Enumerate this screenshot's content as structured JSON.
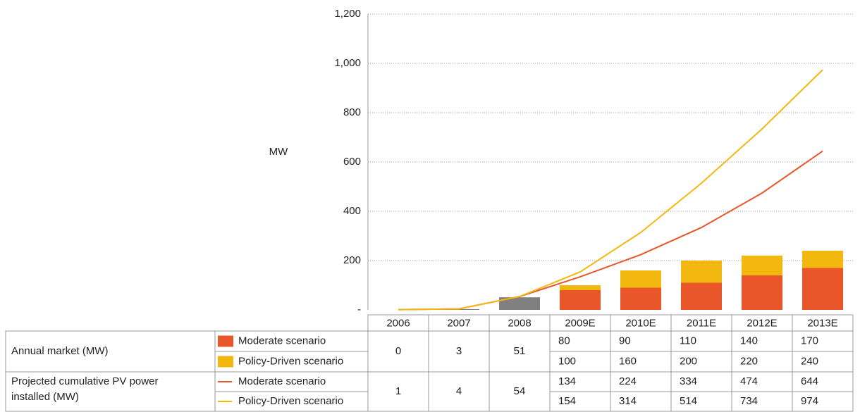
{
  "chart_data": {
    "type": "bar-line",
    "ylabel": "MW",
    "ylim": [
      0,
      1200
    ],
    "yticks": [
      {
        "value": 0,
        "label": "-"
      },
      200,
      400,
      600,
      800,
      {
        "value": 1000,
        "label": "1,000"
      },
      {
        "value": 1200,
        "label": "1,200"
      }
    ],
    "grid": true,
    "categories": [
      "2006",
      "2007",
      "2008",
      "2009E",
      "2010E",
      "2011E",
      "2012E",
      "2013E"
    ],
    "actual": {
      "color": "#808080",
      "annual": [
        0,
        3,
        51
      ],
      "cumulative": [
        1,
        4,
        54
      ]
    },
    "rows": [
      {
        "label": "Annual market (MW)",
        "kind": "bar",
        "series": [
          {
            "name": "Moderate scenario",
            "color": "#e8562a",
            "values": [
              80,
              90,
              110,
              140,
              170
            ]
          },
          {
            "name": "Policy-Driven scenario",
            "color": "#f2b80f",
            "values": [
              100,
              160,
              200,
              220,
              240
            ]
          }
        ]
      },
      {
        "label": "Projected cumulative PV power installed (MW)",
        "kind": "line",
        "series": [
          {
            "name": "Moderate scenario",
            "color": "#e8562a",
            "values": [
              134,
              224,
              334,
              474,
              644
            ]
          },
          {
            "name": "Policy-Driven scenario",
            "color": "#f2b80f",
            "values": [
              154,
              314,
              514,
              734,
              974
            ]
          }
        ]
      }
    ]
  }
}
